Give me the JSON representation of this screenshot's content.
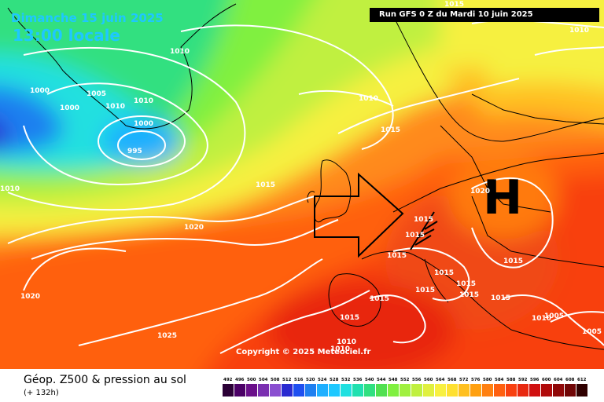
{
  "header": {
    "date": "Dimanche 15 juin 2025",
    "time": "13:00 locale",
    "run": "Run GFS 0 Z du Mardi 10 juin 2025"
  },
  "map": {
    "high_pressure_symbol": "H",
    "copyright": "Copyright © 2025 Meteociel.fr",
    "isobar_labels": [
      "1010",
      "1005",
      "1000",
      "1000",
      "1010",
      "1010",
      "1000",
      "995",
      "1010",
      "1015",
      "1020",
      "1020",
      "1025",
      "1010",
      "1015",
      "1015",
      "1020",
      "1015",
      "1015",
      "1015",
      "1015",
      "1015",
      "1015",
      "1015",
      "1015",
      "1015",
      "1015",
      "1010",
      "1010",
      "1005",
      "1005",
      "1010",
      "1010",
      "1015"
    ]
  },
  "footer": {
    "title": "Géop. Z500 & pression au sol",
    "subtitle": "(+ 132h)"
  },
  "legend": {
    "ticks": [
      "492",
      "496",
      "500",
      "504",
      "508",
      "512",
      "516",
      "520",
      "524",
      "528",
      "532",
      "536",
      "540",
      "544",
      "548",
      "552",
      "556",
      "560",
      "564",
      "568",
      "572",
      "576",
      "580",
      "584",
      "588",
      "592",
      "596",
      "600",
      "604",
      "608",
      "612"
    ],
    "colors": [
      "#2b0036",
      "#4b0066",
      "#6a0f8a",
      "#7a2fb0",
      "#8a4fd0",
      "#2a2ad0",
      "#1e4ff0",
      "#1e7ff0",
      "#1eafff",
      "#1ec8ff",
      "#20e0e0",
      "#20e0b0",
      "#30e080",
      "#50e050",
      "#80f040",
      "#a0f040",
      "#c0f040",
      "#e0f040",
      "#f8f040",
      "#ffe030",
      "#ffc020",
      "#ffa010",
      "#ff8010",
      "#ff6010",
      "#f84010",
      "#e82810",
      "#d01010",
      "#b00a0a",
      "#900808",
      "#700505",
      "#300000"
    ]
  }
}
